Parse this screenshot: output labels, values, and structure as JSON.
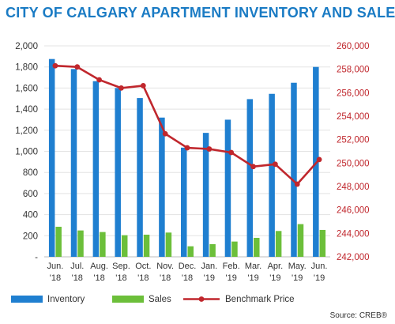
{
  "chart_data": {
    "type": "bar",
    "title": "CITY OF CALGARY APARTMENT INVENTORY AND SALES",
    "categories": [
      [
        "Jun.",
        "'18"
      ],
      [
        "Jul.",
        "'18"
      ],
      [
        "Aug.",
        "'18"
      ],
      [
        "Sep.",
        "'18"
      ],
      [
        "Oct.",
        "'18"
      ],
      [
        "Nov.",
        "'18"
      ],
      [
        "Dec.",
        "'18"
      ],
      [
        "Jan.",
        "'19"
      ],
      [
        "Feb.",
        "'19"
      ],
      [
        "Mar.",
        "'19"
      ],
      [
        "Apr.",
        "'19"
      ],
      [
        "May.",
        "'19"
      ],
      [
        "Jun.",
        "'19"
      ]
    ],
    "series": [
      {
        "name": "Inventory",
        "kind": "bar",
        "axis": "left",
        "color": "#1f7fd0",
        "values": [
          1875,
          1780,
          1665,
          1600,
          1505,
          1320,
          1035,
          1175,
          1300,
          1495,
          1545,
          1650,
          1800
        ]
      },
      {
        "name": "Sales",
        "kind": "bar",
        "axis": "left",
        "color": "#6cbf3a",
        "values": [
          285,
          250,
          235,
          205,
          210,
          230,
          100,
          120,
          145,
          180,
          245,
          310,
          255
        ]
      },
      {
        "name": "Benchmark Price",
        "kind": "line",
        "axis": "right",
        "color": "#c0272d",
        "values": [
          258300,
          258200,
          257100,
          256400,
          256600,
          252500,
          251300,
          251200,
          250900,
          249700,
          249900,
          248200,
          250300
        ]
      }
    ],
    "left_axis": {
      "ylim": [
        0,
        2000
      ],
      "ticks": [
        0,
        200,
        400,
        600,
        800,
        1000,
        1200,
        1400,
        1600,
        1800,
        2000
      ],
      "tick_labels": [
        "-",
        "200",
        "400",
        "600",
        "800",
        "1,000",
        "1,200",
        "1,400",
        "1,600",
        "1,800",
        "2,000"
      ]
    },
    "right_axis": {
      "ylim": [
        242000,
        260000
      ],
      "ticks": [
        242000,
        244000,
        246000,
        248000,
        250000,
        252000,
        254000,
        256000,
        258000,
        260000
      ],
      "tick_labels": [
        "242,000",
        "244,000",
        "246,000",
        "248,000",
        "250,000",
        "252,000",
        "254,000",
        "256,000",
        "258,000",
        "260,000"
      ],
      "color": "#c0272d"
    },
    "grid": true,
    "legend": "bottom",
    "source": "Source: CREB®"
  }
}
